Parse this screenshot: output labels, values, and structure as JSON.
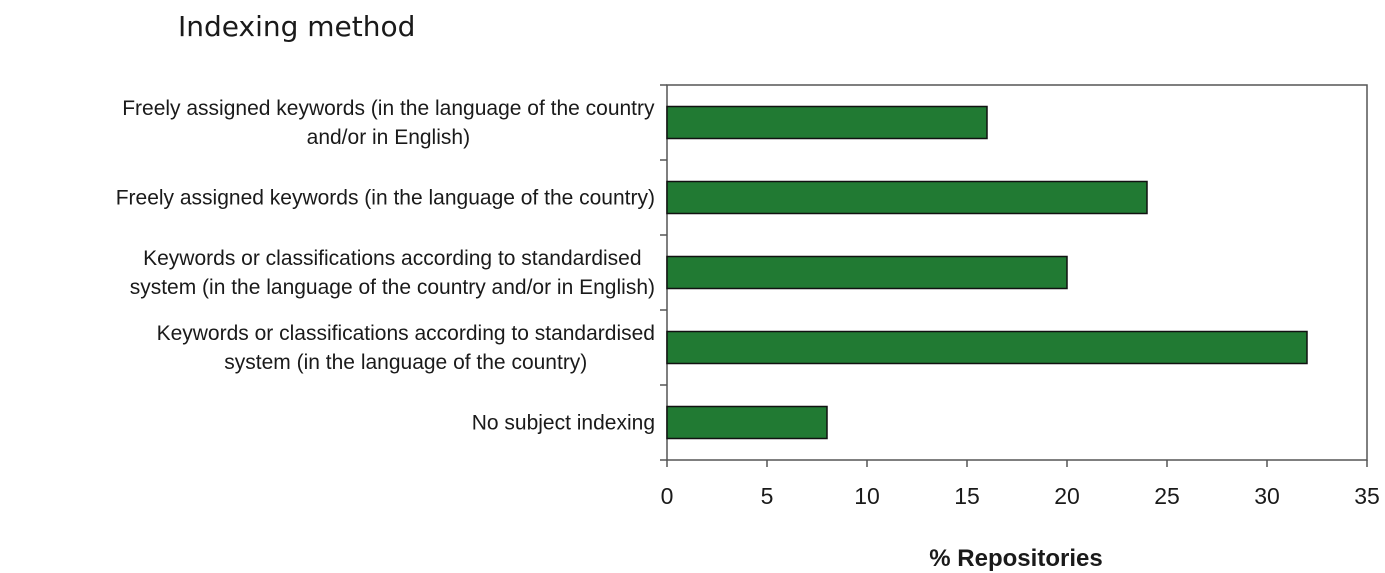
{
  "chart_data": {
    "type": "bar",
    "orientation": "horizontal",
    "title": "Indexing method",
    "xlabel": "% Repositories",
    "ylabel": "",
    "xlim": [
      0,
      35
    ],
    "xticks": [
      0,
      5,
      10,
      15,
      20,
      25,
      30,
      35
    ],
    "grid": false,
    "bar_color": "#217a33",
    "categories": [
      [
        "Freely assigned keywords (in the language of the country",
        "and/or in English)"
      ],
      [
        "Freely assigned keywords (in the language of the country)"
      ],
      [
        "Keywords or classifications according to  standardised",
        "system (in the language of the country and/or in English)"
      ],
      [
        "Keywords or classifications according to  standardised",
        "system (in the language of the country)"
      ],
      [
        "No subject indexing"
      ]
    ],
    "values": [
      16,
      24,
      20,
      32,
      8
    ]
  }
}
